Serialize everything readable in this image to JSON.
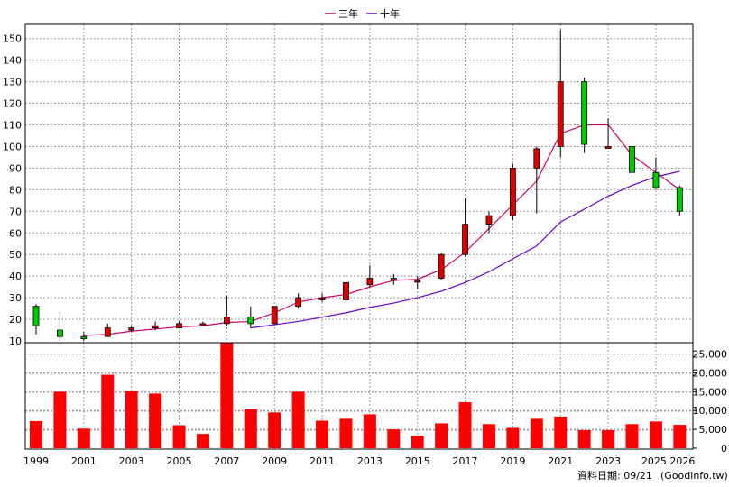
{
  "legend": {
    "ma3_label": "三年",
    "ma10_label": "十年"
  },
  "footer": {
    "date_label": "資料日期: 09/21",
    "source": "(Goodinfo.tw)"
  },
  "colors": {
    "up": "#dd0000",
    "down": "#00cc00",
    "ma3": "#cc0066",
    "ma10": "#6600cc",
    "volume": "#ff0000",
    "grid": "#999999"
  },
  "chart_data": [
    {
      "type": "candlestick",
      "title": "",
      "x_ticks": [
        "1999",
        "2001",
        "2003",
        "2005",
        "2007",
        "2009",
        "2011",
        "2013",
        "2015",
        "2017",
        "2019",
        "2021",
        "2023",
        "2025",
        "2026"
      ],
      "ylim": [
        10,
        155
      ],
      "y_ticks": [
        10,
        20,
        30,
        40,
        50,
        60,
        70,
        80,
        90,
        100,
        110,
        120,
        130,
        140,
        150
      ],
      "grid": true,
      "legend_position": "top-center",
      "candles": [
        {
          "year": 1999,
          "open": 26,
          "high": 27,
          "low": 13,
          "close": 17
        },
        {
          "year": 2000,
          "open": 15,
          "high": 24,
          "low": 10,
          "close": 12
        },
        {
          "year": 2001,
          "open": 12,
          "high": 14,
          "low": 10,
          "close": 11
        },
        {
          "year": 2002,
          "open": 12,
          "high": 18,
          "low": 12,
          "close": 16
        },
        {
          "year": 2003,
          "open": 15,
          "high": 17,
          "low": 14,
          "close": 16
        },
        {
          "year": 2004,
          "open": 16,
          "high": 19,
          "low": 15,
          "close": 17
        },
        {
          "year": 2005,
          "open": 16,
          "high": 19,
          "low": 16,
          "close": 18
        },
        {
          "year": 2006,
          "open": 17,
          "high": 19,
          "low": 17,
          "close": 18
        },
        {
          "year": 2007,
          "open": 18,
          "high": 31,
          "low": 17,
          "close": 21
        },
        {
          "year": 2008,
          "open": 21,
          "high": 26,
          "low": 16,
          "close": 18
        },
        {
          "year": 2009,
          "open": 18,
          "high": 26,
          "low": 18,
          "close": 26
        },
        {
          "year": 2010,
          "open": 26,
          "high": 32,
          "low": 25,
          "close": 30
        },
        {
          "year": 2011,
          "open": 29,
          "high": 32,
          "low": 28,
          "close": 30
        },
        {
          "year": 2012,
          "open": 29,
          "high": 37,
          "low": 28,
          "close": 37
        },
        {
          "year": 2013,
          "open": 36,
          "high": 45,
          "low": 35,
          "close": 39
        },
        {
          "year": 2014,
          "open": 38,
          "high": 41,
          "low": 36,
          "close": 39
        },
        {
          "year": 2015,
          "open": 38,
          "high": 40,
          "low": 34,
          "close": 38
        },
        {
          "year": 2016,
          "open": 39,
          "high": 51,
          "low": 38,
          "close": 50
        },
        {
          "year": 2017,
          "open": 50,
          "high": 76,
          "low": 49,
          "close": 64
        },
        {
          "year": 2018,
          "open": 64,
          "high": 70,
          "low": 60,
          "close": 68
        },
        {
          "year": 2019,
          "open": 68,
          "high": 92,
          "low": 66,
          "close": 90
        },
        {
          "year": 2020,
          "open": 90,
          "high": 100,
          "low": 69,
          "close": 99
        },
        {
          "year": 2021,
          "open": 100,
          "high": 154,
          "low": 95,
          "close": 130
        },
        {
          "year": 2022,
          "open": 130,
          "high": 132,
          "low": 97,
          "close": 101
        },
        {
          "year": 2023,
          "open": 100,
          "high": 113,
          "low": 99,
          "close": 100
        },
        {
          "year": 2024,
          "open": 100,
          "high": 100,
          "low": 86,
          "close": 88
        },
        {
          "year": 2025,
          "open": 88,
          "high": 95,
          "low": 80,
          "close": 81
        },
        {
          "year": 2026,
          "open": 81,
          "high": 82,
          "low": 68,
          "close": 70
        }
      ],
      "series": [
        {
          "name": "三年",
          "x": [
            2001,
            2002,
            2003,
            2004,
            2005,
            2006,
            2007,
            2008,
            2009,
            2010,
            2011,
            2012,
            2013,
            2014,
            2015,
            2016,
            2017,
            2018,
            2019,
            2020,
            2021,
            2022,
            2023,
            2024,
            2025,
            2026
          ],
          "values": [
            12.5,
            13,
            14.5,
            15.5,
            16.5,
            17,
            18.5,
            19,
            23,
            28,
            30,
            31.5,
            35,
            38,
            38.5,
            43,
            51,
            62,
            73,
            84,
            106,
            110,
            110,
            96,
            88,
            80
          ]
        },
        {
          "name": "十年",
          "x": [
            2008,
            2009,
            2010,
            2011,
            2012,
            2013,
            2014,
            2015,
            2016,
            2017,
            2018,
            2019,
            2020,
            2021,
            2022,
            2023,
            2024,
            2025,
            2026
          ],
          "values": [
            16,
            17.5,
            19,
            21,
            23,
            25.5,
            27.5,
            30,
            33,
            37,
            42,
            48,
            54,
            65,
            71,
            77,
            82,
            86,
            88.5
          ]
        }
      ]
    },
    {
      "type": "bar",
      "title": "",
      "ylim": [
        0,
        28000
      ],
      "y_ticks": [
        "0",
        "5,000",
        "10,000",
        "15,000",
        "20,000",
        "25,000"
      ],
      "categories": [
        1999,
        2000,
        2001,
        2002,
        2003,
        2004,
        2005,
        2006,
        2007,
        2008,
        2009,
        2010,
        2011,
        2012,
        2013,
        2014,
        2015,
        2016,
        2017,
        2018,
        2019,
        2020,
        2021,
        2022,
        2023,
        2024,
        2025,
        2026
      ],
      "values": [
        7200,
        15000,
        5200,
        19500,
        15200,
        14500,
        6100,
        3800,
        28000,
        10300,
        9500,
        15000,
        7300,
        7800,
        9000,
        5000,
        3300,
        6600,
        12200,
        6400,
        5400,
        7800,
        8400,
        4800,
        4800,
        6400,
        7100,
        6200
      ]
    }
  ]
}
